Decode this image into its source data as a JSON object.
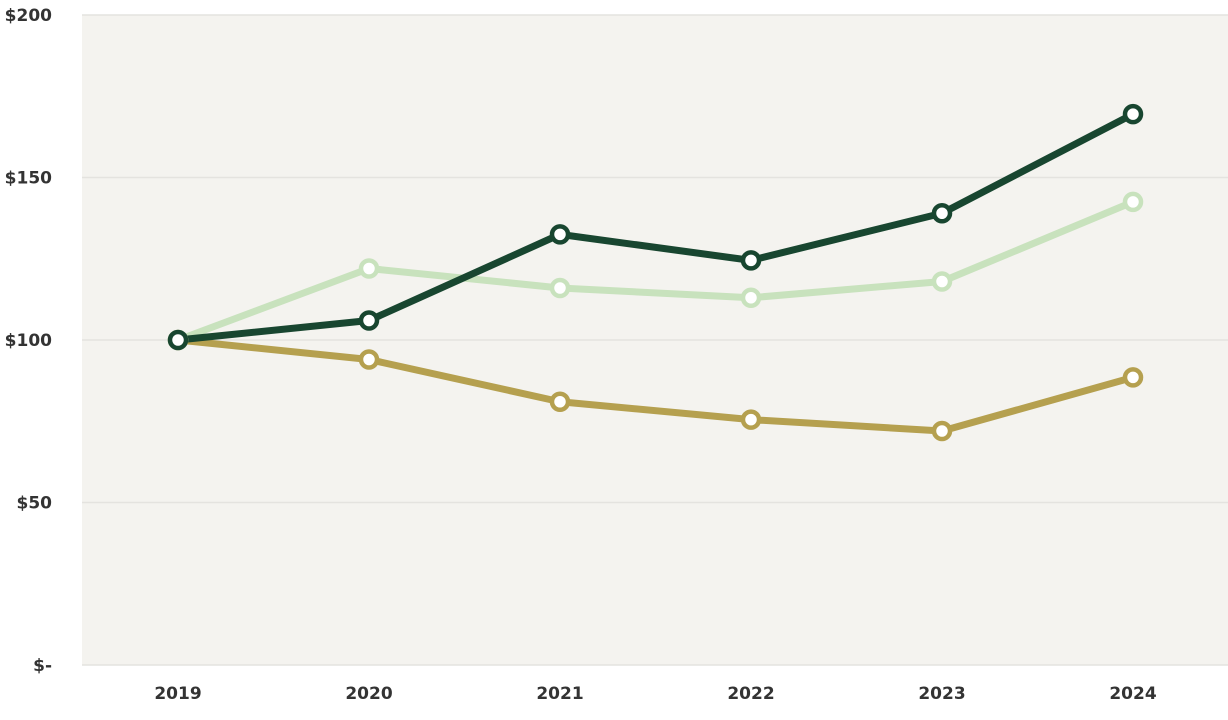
{
  "chart_data": {
    "type": "line",
    "title": "",
    "xlabel": "",
    "ylabel": "",
    "categories": [
      "2019",
      "2020",
      "2021",
      "2022",
      "2023",
      "2024"
    ],
    "ylim": [
      0,
      200
    ],
    "y_ticks": [
      {
        "value": 0,
        "label": "$-"
      },
      {
        "value": 50,
        "label": "$50"
      },
      {
        "value": 100,
        "label": "$100"
      },
      {
        "value": 150,
        "label": "$150"
      },
      {
        "value": 200,
        "label": "$200"
      }
    ],
    "grid": "horizontal",
    "legend": "none",
    "series": [
      {
        "color": "#b5a04f",
        "values": [
          100,
          94,
          81,
          75.5,
          72,
          88.5
        ]
      },
      {
        "color": "#c8e2bd",
        "values": [
          100,
          122,
          116,
          113,
          118,
          142.5
        ]
      },
      {
        "color": "#184630",
        "values": [
          100,
          106,
          132.5,
          124.5,
          139,
          169.5
        ]
      }
    ],
    "background_color": "#f4f3ef",
    "grid_color": "#e4e3df"
  }
}
